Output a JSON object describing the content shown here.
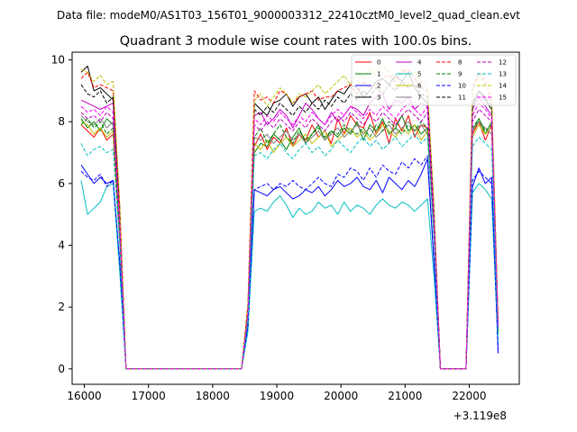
{
  "chart_data": {
    "type": "line",
    "suptitle": "Data file: modeM0/AS1T03_156T01_9000003312_22410cztM0_level2_quad_clean.evt",
    "title": "Quadrant 3 module wise count rates with 100.0s bins.",
    "xlabel": "",
    "ylabel": "",
    "x_offset_label": "+3.119e8",
    "xlim": [
      15810,
      22780
    ],
    "ylim": [
      -0.5,
      10.25
    ],
    "x_ticks": [
      16000,
      17000,
      18000,
      19000,
      20000,
      21000,
      22000
    ],
    "y_ticks": [
      0,
      2,
      4,
      6,
      8,
      10
    ],
    "legend_position": "top-right",
    "x": [
      15950,
      16050,
      16150,
      16250,
      16350,
      16450,
      16550,
      16650,
      16750,
      16850,
      16950,
      17050,
      17150,
      17250,
      17350,
      17450,
      17550,
      17650,
      17750,
      17850,
      17950,
      18050,
      18150,
      18250,
      18350,
      18450,
      18550,
      18650,
      18750,
      18850,
      18950,
      19050,
      19150,
      19250,
      19350,
      19450,
      19550,
      19650,
      19750,
      19850,
      19950,
      20050,
      20150,
      20250,
      20350,
      20450,
      20550,
      20650,
      20750,
      20850,
      20950,
      21050,
      21150,
      21250,
      21350,
      21450,
      21550,
      21650,
      21750,
      21850,
      21950,
      22050,
      22150,
      22250,
      22350,
      22450
    ],
    "series": [
      {
        "name": "0",
        "color": "#ff0000",
        "dash": false,
        "values": [
          7.9,
          7.7,
          7.5,
          7.8,
          7.4,
          7.6,
          4.2,
          0,
          0,
          0,
          0,
          0,
          0,
          0,
          0,
          0,
          0,
          0,
          0,
          0,
          0,
          0,
          0,
          0,
          0,
          0,
          1.8,
          7.2,
          7.6,
          7.1,
          7.5,
          7.3,
          7.8,
          7.2,
          7.6,
          7.4,
          7.9,
          7.5,
          7.7,
          7.3,
          8.1,
          7.6,
          8.2,
          7.9,
          7.8,
          8.3,
          7.6,
          8.0,
          7.3,
          8.1,
          7.7,
          8.2,
          7.5,
          7.9,
          7.8,
          4.4,
          0,
          0,
          0,
          0,
          0,
          7.6,
          8.0,
          7.4,
          7.9,
          1.2
        ]
      },
      {
        "name": "1",
        "color": "#008000",
        "dash": false,
        "values": [
          8.1,
          7.8,
          8.0,
          7.7,
          8.1,
          7.9,
          4.4,
          0,
          0,
          0,
          0,
          0,
          0,
          0,
          0,
          0,
          0,
          0,
          0,
          0,
          0,
          0,
          0,
          0,
          0,
          0,
          1.7,
          7.0,
          7.3,
          7.2,
          7.6,
          7.4,
          7.1,
          7.5,
          7.8,
          7.3,
          7.6,
          7.9,
          7.4,
          7.7,
          7.5,
          7.8,
          7.6,
          8.0,
          7.4,
          7.9,
          7.7,
          8.1,
          7.6,
          7.8,
          8.2,
          7.7,
          7.9,
          7.6,
          7.8,
          4.3,
          0,
          0,
          0,
          0,
          0,
          7.7,
          8.1,
          7.6,
          8.0,
          1.1
        ]
      },
      {
        "name": "2",
        "color": "#0000ff",
        "dash": false,
        "values": [
          6.6,
          6.3,
          6.0,
          6.2,
          6.0,
          6.1,
          3.4,
          0,
          0,
          0,
          0,
          0,
          0,
          0,
          0,
          0,
          0,
          0,
          0,
          0,
          0,
          0,
          0,
          0,
          0,
          0,
          1.4,
          5.8,
          5.7,
          5.6,
          5.8,
          5.9,
          5.7,
          5.5,
          5.6,
          5.8,
          5.7,
          5.9,
          5.6,
          5.8,
          6.1,
          5.9,
          6.0,
          6.2,
          5.9,
          5.8,
          6.1,
          5.7,
          6.2,
          6.0,
          5.8,
          6.1,
          5.9,
          6.3,
          6.8,
          3.4,
          0,
          0,
          0,
          0,
          0,
          5.9,
          6.5,
          6.0,
          6.2,
          0.5
        ]
      },
      {
        "name": "3",
        "color": "#000000",
        "dash": false,
        "values": [
          9.6,
          9.8,
          9.0,
          9.1,
          8.9,
          8.7,
          5.3,
          0,
          0,
          0,
          0,
          0,
          0,
          0,
          0,
          0,
          0,
          0,
          0,
          0,
          0,
          0,
          0,
          0,
          0,
          0,
          2.0,
          8.6,
          8.4,
          8.2,
          8.6,
          8.7,
          8.9,
          8.5,
          8.8,
          8.9,
          8.6,
          8.8,
          8.4,
          8.7,
          9.0,
          8.9,
          9.2,
          9.1,
          8.8,
          9.0,
          9.3,
          9.4,
          9.2,
          9.5,
          9.3,
          9.6,
          9.1,
          8.8,
          8.6,
          5.0,
          0,
          0,
          0,
          0,
          0,
          8.5,
          9.0,
          8.7,
          8.4,
          1.5
        ]
      },
      {
        "name": "4",
        "color": "#bf00bf",
        "dash": false,
        "values": [
          8.7,
          8.6,
          8.5,
          8.4,
          8.5,
          8.6,
          5.0,
          0,
          0,
          0,
          0,
          0,
          0,
          0,
          0,
          0,
          0,
          0,
          0,
          0,
          0,
          0,
          0,
          0,
          0,
          0,
          1.9,
          8.2,
          8.3,
          7.9,
          8.1,
          8.4,
          8.2,
          7.8,
          8.2,
          8.6,
          8.4,
          8.1,
          7.9,
          8.3,
          8.0,
          8.2,
          8.5,
          8.4,
          8.2,
          8.6,
          8.8,
          8.9,
          8.4,
          8.7,
          8.6,
          8.8,
          8.4,
          8.6,
          8.5,
          4.9,
          0,
          0,
          0,
          0,
          0,
          8.4,
          8.8,
          8.5,
          8.2,
          1.4
        ]
      },
      {
        "name": "5",
        "color": "#00bfbf",
        "dash": false,
        "values": [
          6.1,
          5.0,
          5.2,
          5.4,
          5.9,
          6.0,
          3.2,
          0,
          0,
          0,
          0,
          0,
          0,
          0,
          0,
          0,
          0,
          0,
          0,
          0,
          0,
          0,
          0,
          0,
          0,
          0,
          1.2,
          5.1,
          5.2,
          5.1,
          5.4,
          5.6,
          5.3,
          4.9,
          5.2,
          5.0,
          5.1,
          5.4,
          5.2,
          5.3,
          5.0,
          5.4,
          5.1,
          5.3,
          5.2,
          5.0,
          5.3,
          5.5,
          5.3,
          5.2,
          5.4,
          5.3,
          5.1,
          5.3,
          5.5,
          3.0,
          0,
          0,
          0,
          0,
          0,
          5.7,
          6.0,
          5.8,
          5.5,
          0.8
        ]
      },
      {
        "name": "6",
        "color": "#bfbf00",
        "dash": false,
        "values": [
          8.0,
          7.9,
          7.6,
          7.8,
          7.5,
          7.7,
          4.5,
          0,
          0,
          0,
          0,
          0,
          0,
          0,
          0,
          0,
          0,
          0,
          0,
          0,
          0,
          0,
          0,
          0,
          0,
          0,
          1.8,
          7.3,
          7.1,
          7.4,
          7.0,
          7.3,
          7.5,
          7.2,
          7.4,
          7.6,
          7.3,
          7.5,
          7.7,
          7.2,
          7.4,
          7.6,
          7.8,
          7.5,
          7.7,
          7.4,
          7.6,
          7.9,
          7.7,
          7.5,
          7.8,
          7.6,
          7.9,
          7.4,
          7.7,
          4.4,
          0,
          0,
          0,
          0,
          0,
          7.5,
          7.9,
          7.6,
          7.8,
          1.3
        ]
      },
      {
        "name": "7",
        "color": "#808080",
        "dash": false,
        "values": [
          8.2,
          8.0,
          7.9,
          8.1,
          7.8,
          8.0,
          4.6,
          0,
          0,
          0,
          0,
          0,
          0,
          0,
          0,
          0,
          0,
          0,
          0,
          0,
          0,
          0,
          0,
          0,
          0,
          0,
          1.8,
          7.5,
          7.4,
          7.6,
          7.3,
          7.5,
          7.7,
          7.4,
          7.6,
          7.3,
          7.5,
          7.7,
          7.4,
          7.6,
          7.8,
          7.5,
          7.7,
          7.9,
          7.6,
          7.8,
          7.5,
          7.7,
          7.9,
          7.6,
          7.8,
          8.0,
          7.7,
          7.9,
          7.6,
          4.5,
          0,
          0,
          0,
          0,
          0,
          7.7,
          8.0,
          7.8,
          7.6,
          1.3
        ]
      },
      {
        "name": "8",
        "color": "#ff0000",
        "dash": true,
        "values": [
          9.4,
          9.6,
          9.1,
          9.2,
          9.1,
          9.0,
          5.3,
          0,
          0,
          0,
          0,
          0,
          0,
          0,
          0,
          0,
          0,
          0,
          0,
          0,
          0,
          0,
          0,
          0,
          0,
          0,
          2.1,
          9.0,
          8.7,
          8.8,
          8.6,
          9.0,
          8.9,
          8.6,
          8.8,
          8.9,
          9.0,
          8.7,
          8.8,
          8.8,
          9.0,
          9.1,
          9.2,
          8.9,
          9.3,
          9.1,
          9.2,
          9.4,
          9.5,
          9.3,
          9.6,
          9.7,
          9.4,
          9.1,
          9.0,
          5.2,
          0,
          0,
          0,
          0,
          0,
          9.1,
          9.6,
          9.3,
          8.6,
          1.6
        ]
      },
      {
        "name": "9",
        "color": "#008000",
        "dash": true,
        "values": [
          7.9,
          8.1,
          7.8,
          8.0,
          7.6,
          7.8,
          4.5,
          0,
          0,
          0,
          0,
          0,
          0,
          0,
          0,
          0,
          0,
          0,
          0,
          0,
          0,
          0,
          0,
          0,
          0,
          0,
          1.7,
          7.5,
          7.8,
          7.3,
          7.6,
          7.9,
          7.5,
          7.3,
          7.7,
          7.4,
          7.6,
          7.8,
          7.5,
          7.7,
          7.6,
          7.9,
          7.7,
          7.6,
          7.8,
          7.5,
          7.9,
          7.7,
          8.0,
          7.8,
          7.6,
          7.9,
          7.7,
          8.0,
          7.8,
          4.5,
          0,
          0,
          0,
          0,
          0,
          7.8,
          8.1,
          7.7,
          7.9,
          1.2
        ]
      },
      {
        "name": "10",
        "color": "#0000ff",
        "dash": true,
        "values": [
          6.4,
          6.2,
          6.1,
          6.3,
          5.9,
          6.1,
          3.5,
          0,
          0,
          0,
          0,
          0,
          0,
          0,
          0,
          0,
          0,
          0,
          0,
          0,
          0,
          0,
          0,
          0,
          0,
          0,
          1.4,
          5.8,
          5.9,
          6.0,
          5.8,
          6.0,
          5.9,
          6.1,
          5.9,
          5.8,
          6.0,
          6.2,
          6.0,
          5.9,
          6.3,
          6.2,
          6.5,
          6.4,
          6.1,
          6.5,
          6.2,
          6.6,
          6.4,
          6.3,
          6.7,
          6.5,
          6.8,
          6.6,
          6.9,
          3.5,
          0,
          0,
          0,
          0,
          0,
          6.1,
          6.4,
          6.2,
          6.0,
          0.6
        ]
      },
      {
        "name": "11",
        "color": "#000000",
        "dash": true,
        "values": [
          9.2,
          8.9,
          8.8,
          9.0,
          8.6,
          8.8,
          5.1,
          0,
          0,
          0,
          0,
          0,
          0,
          0,
          0,
          0,
          0,
          0,
          0,
          0,
          0,
          0,
          0,
          0,
          0,
          0,
          1.9,
          8.4,
          8.2,
          8.5,
          8.3,
          8.6,
          8.4,
          8.2,
          8.5,
          8.3,
          8.6,
          8.4,
          8.7,
          8.5,
          8.8,
          8.6,
          8.9,
          8.7,
          9.0,
          8.8,
          9.1,
          8.9,
          9.2,
          9.0,
          9.3,
          9.1,
          9.2,
          8.9,
          8.8,
          5.0,
          0,
          0,
          0,
          0,
          0,
          8.6,
          9.0,
          8.8,
          8.5,
          1.5
        ]
      },
      {
        "name": "12",
        "color": "#bf00bf",
        "dash": true,
        "values": [
          8.3,
          8.1,
          8.2,
          8.0,
          8.3,
          8.1,
          4.7,
          0,
          0,
          0,
          0,
          0,
          0,
          0,
          0,
          0,
          0,
          0,
          0,
          0,
          0,
          0,
          0,
          0,
          0,
          0,
          1.8,
          7.9,
          7.7,
          8.0,
          7.8,
          8.1,
          7.9,
          7.7,
          8.0,
          7.8,
          8.1,
          7.9,
          7.7,
          8.0,
          8.2,
          8.0,
          8.3,
          8.1,
          7.9,
          8.2,
          8.0,
          8.3,
          8.1,
          7.9,
          8.2,
          8.4,
          8.2,
          8.0,
          8.3,
          4.7,
          0,
          0,
          0,
          0,
          0,
          8.0,
          8.4,
          8.2,
          8.0,
          1.3
        ]
      },
      {
        "name": "13",
        "color": "#00bfbf",
        "dash": true,
        "values": [
          7.3,
          6.9,
          7.1,
          7.2,
          7.0,
          7.1,
          4.1,
          0,
          0,
          0,
          0,
          0,
          0,
          0,
          0,
          0,
          0,
          0,
          0,
          0,
          0,
          0,
          0,
          0,
          0,
          0,
          1.6,
          6.9,
          7.0,
          6.8,
          7.1,
          7.3,
          7.0,
          6.8,
          7.1,
          7.3,
          7.0,
          7.2,
          6.9,
          7.1,
          7.4,
          7.2,
          7.0,
          7.3,
          7.5,
          7.2,
          7.4,
          7.1,
          7.3,
          7.5,
          7.2,
          7.4,
          7.6,
          7.3,
          7.5,
          4.2,
          0,
          0,
          0,
          0,
          0,
          7.2,
          7.5,
          7.3,
          7.1,
          1.1
        ]
      },
      {
        "name": "14",
        "color": "#bfbf00",
        "dash": true,
        "values": [
          9.7,
          9.6,
          9.3,
          9.5,
          9.2,
          9.3,
          5.4,
          0,
          0,
          0,
          0,
          0,
          0,
          0,
          0,
          0,
          0,
          0,
          0,
          0,
          0,
          0,
          0,
          0,
          0,
          0,
          2.1,
          8.7,
          8.9,
          8.5,
          8.8,
          9.1,
          8.9,
          8.6,
          8.9,
          8.8,
          9.0,
          9.2,
          8.9,
          9.1,
          9.3,
          9.5,
          9.2,
          9.6,
          9.4,
          9.7,
          9.5,
          9.8,
          9.6,
          9.4,
          9.7,
          9.5,
          9.6,
          9.3,
          9.1,
          5.3,
          0,
          0,
          0,
          0,
          0,
          9.0,
          9.5,
          9.2,
          8.8,
          1.6
        ]
      },
      {
        "name": "15",
        "color": "#ff00ff",
        "dash": true,
        "values": [
          8.5,
          8.3,
          8.4,
          8.2,
          8.5,
          8.3,
          4.8,
          0,
          0,
          0,
          0,
          0,
          0,
          0,
          0,
          0,
          0,
          0,
          0,
          0,
          0,
          0,
          0,
          0,
          0,
          0,
          1.8,
          8.1,
          7.9,
          8.2,
          8.0,
          8.3,
          8.1,
          7.9,
          8.2,
          8.0,
          8.3,
          8.1,
          7.9,
          8.2,
          8.4,
          8.2,
          8.5,
          8.3,
          8.1,
          8.4,
          8.2,
          8.5,
          8.3,
          8.1,
          8.4,
          8.6,
          8.4,
          8.2,
          8.5,
          4.8,
          0,
          0,
          0,
          0,
          0,
          8.2,
          8.6,
          8.4,
          8.1,
          1.4
        ]
      }
    ]
  }
}
